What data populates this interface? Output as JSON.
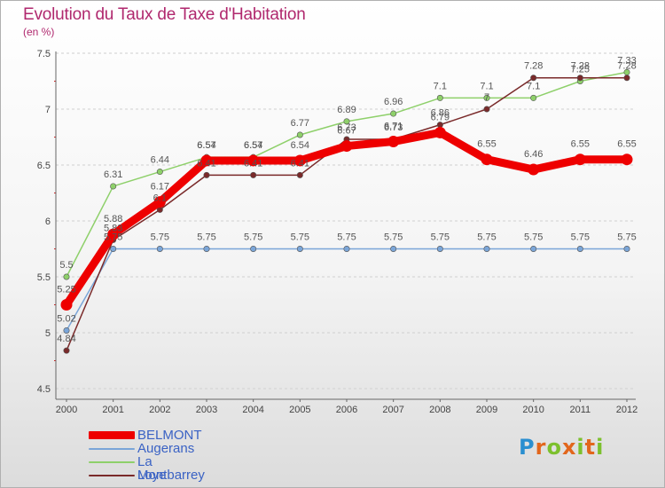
{
  "chart_data": {
    "type": "line",
    "title": "Evolution du Taux de Taxe d'Habitation",
    "subtitle": "(en %)",
    "xlabel": "",
    "ylabel": "",
    "categories": [
      "2000",
      "2001",
      "2002",
      "2003",
      "2004",
      "2005",
      "2006",
      "2007",
      "2008",
      "2009",
      "2010",
      "2011",
      "2012"
    ],
    "ylim": [
      4.5,
      7.5
    ],
    "yticks": [
      "4.5",
      "5",
      "5.5",
      "6",
      "6.5",
      "7",
      "7.5"
    ],
    "series": [
      {
        "name": "BELMONT",
        "color": "#ee0000",
        "values": [
          5.25,
          5.88,
          6.17,
          6.54,
          6.54,
          6.54,
          6.67,
          6.71,
          6.79,
          6.55,
          6.46,
          6.55,
          6.55
        ],
        "labels": [
          "5.25",
          "5.88",
          "6.17",
          "6.54",
          "6.54",
          "6.54",
          "6.67",
          "6.71",
          "6.79",
          "6.55",
          "6.46",
          "6.55",
          "6.55"
        ]
      },
      {
        "name": "Augerans",
        "color": "#7aa5d8",
        "values": [
          5.02,
          5.75,
          5.75,
          5.75,
          5.75,
          5.75,
          5.75,
          5.75,
          5.75,
          5.75,
          5.75,
          5.75,
          5.75
        ],
        "labels": [
          "5.02",
          "5.75",
          "5.75",
          "5.75",
          "5.75",
          "5.75",
          "5.75",
          "5.75",
          "5.75",
          "5.75",
          "5.75",
          "5.75",
          "5.75"
        ]
      },
      {
        "name": "La Loye",
        "color": "#8ed06a",
        "values": [
          5.5,
          6.31,
          6.44,
          6.57,
          6.57,
          6.77,
          6.89,
          6.96,
          7.1,
          7.1,
          7.1,
          7.25,
          7.33
        ],
        "labels": [
          "5.5",
          "6.31",
          "6.44",
          "6.57",
          "6.57",
          "6.77",
          "6.89",
          "6.96",
          "7.1",
          "7.1",
          "7.1",
          "7.25",
          "7.33"
        ]
      },
      {
        "name": "Montbarrey",
        "color": "#7a2a2a",
        "values": [
          4.84,
          5.83,
          6.1,
          6.41,
          6.41,
          6.41,
          6.73,
          6.73,
          6.86,
          7.0,
          7.28,
          7.28,
          7.28
        ],
        "labels": [
          "4.84",
          "5.83",
          "6.1",
          "6.41",
          "6.41",
          "6.41",
          "6.73",
          "6.73",
          "6.86",
          "7",
          "7.28",
          "7.28",
          "7.28"
        ]
      }
    ],
    "legend": [
      "BELMONT",
      "Augerans",
      "La Loye",
      "Montbarrey"
    ],
    "legend_position": "bottom-left"
  },
  "logo": {
    "letters": [
      "P",
      "r",
      "o",
      "x",
      "i",
      "t",
      "i"
    ],
    "colors": [
      "#2a8fd0",
      "#e2661c",
      "#7cc02d",
      "#e2661c",
      "#7cc02d",
      "#e2661c",
      "#7cc02d"
    ]
  }
}
